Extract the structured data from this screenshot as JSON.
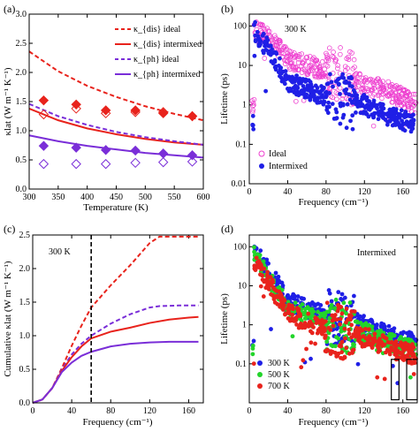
{
  "colors": {
    "red": "#e8231c",
    "purple": "#7a2ed8",
    "blue": "#1f1fe6",
    "pink": "#ee3fd0",
    "green": "#22d42a",
    "axis": "#000000"
  },
  "chart_data": [
    {
      "id": "a",
      "type": "line",
      "panel_label": "(a)",
      "xlabel": "Temperature (K)",
      "ylabel": "κlat (W m⁻¹ K⁻¹)",
      "xlim": [
        300,
        600
      ],
      "ylim": [
        0,
        3.0
      ],
      "xticks": [
        "300",
        "350",
        "400",
        "450",
        "500",
        "550",
        "600"
      ],
      "yticks": [
        "0.0",
        "0.5",
        "1.0",
        "1.5",
        "2.0",
        "2.5",
        "3.0"
      ],
      "legend_position": "top-right",
      "series": [
        {
          "name": "κ_{dis} ideal",
          "style": "dashed",
          "color": "red",
          "x": [
            300,
            350,
            400,
            450,
            500,
            550,
            600
          ],
          "y": [
            2.36,
            2.02,
            1.77,
            1.58,
            1.42,
            1.29,
            1.18
          ]
        },
        {
          "name": "κ_{dis} intermixed",
          "style": "solid",
          "color": "red",
          "x": [
            300,
            350,
            400,
            450,
            500,
            550,
            600
          ],
          "y": [
            1.38,
            1.18,
            1.04,
            0.94,
            0.86,
            0.8,
            0.76
          ]
        },
        {
          "name": "κ_{ph} ideal",
          "style": "dashed",
          "color": "purple",
          "x": [
            300,
            350,
            400,
            450,
            500,
            550,
            600
          ],
          "y": [
            1.46,
            1.25,
            1.1,
            0.98,
            0.89,
            0.82,
            0.76
          ]
        },
        {
          "name": "κ_{ph} intermixed",
          "style": "solid",
          "color": "purple",
          "x": [
            300,
            350,
            400,
            450,
            500,
            550,
            600
          ],
          "y": [
            0.92,
            0.82,
            0.74,
            0.68,
            0.62,
            0.58,
            0.54
          ]
        }
      ],
      "markers": [
        {
          "shape": "diamond",
          "fill": true,
          "color": "red",
          "x": [
            325,
            381,
            432,
            483,
            531,
            581
          ],
          "y": [
            1.52,
            1.45,
            1.35,
            1.35,
            1.3,
            1.25
          ]
        },
        {
          "shape": "diamond",
          "fill": false,
          "color": "red",
          "x": [
            325,
            381,
            432,
            483,
            531,
            581
          ],
          "y": [
            1.28,
            1.38,
            1.3,
            1.32,
            1.32,
            1.25
          ]
        },
        {
          "shape": "diamond",
          "fill": true,
          "color": "purple",
          "x": [
            325,
            381,
            432,
            483,
            531,
            581
          ],
          "y": [
            0.74,
            0.71,
            0.67,
            0.66,
            0.61,
            0.58
          ]
        },
        {
          "shape": "diamond",
          "fill": false,
          "color": "purple",
          "x": [
            325,
            381,
            432,
            483,
            531,
            581
          ],
          "y": [
            0.43,
            0.43,
            0.43,
            0.45,
            0.46,
            0.47
          ]
        }
      ]
    },
    {
      "id": "b",
      "type": "scatter",
      "panel_label": "(b)",
      "annotation": "300 K",
      "xlabel": "Frequency (cm⁻¹)",
      "ylabel": "Lifetime (ps)",
      "xlim": [
        0,
        175
      ],
      "ylim": [
        0.01,
        200
      ],
      "yscale": "log",
      "xticks": [
        "0",
        "40",
        "80",
        "120",
        "160"
      ],
      "yticks": [
        "0.01",
        "0.1",
        "1",
        "10",
        "100"
      ],
      "legend_position": "bottom-left",
      "series": [
        {
          "name": "Ideal",
          "marker": "open-circle",
          "color": "pink",
          "trend": [
            [
              5,
              80
            ],
            [
              20,
              50
            ],
            [
              40,
              15
            ],
            [
              60,
              10
            ],
            [
              80,
              8
            ],
            [
              100,
              6
            ],
            [
              120,
              3
            ],
            [
              140,
              2.5
            ],
            [
              160,
              1.5
            ],
            [
              175,
              1.0
            ]
          ],
          "count": 420
        },
        {
          "name": "Intermixed",
          "marker": "filled-circle",
          "color": "blue",
          "trend": [
            [
              5,
              80
            ],
            [
              20,
              25
            ],
            [
              40,
              4
            ],
            [
              60,
              2.5
            ],
            [
              80,
              1.5
            ],
            [
              100,
              1.2
            ],
            [
              120,
              1.0
            ],
            [
              140,
              0.6
            ],
            [
              160,
              0.4
            ],
            [
              175,
              0.3
            ]
          ],
          "count": 420
        }
      ]
    },
    {
      "id": "c",
      "type": "line",
      "panel_label": "(c)",
      "annotation": "300 K",
      "xlabel": "Frequency (cm⁻¹)",
      "ylabel": "Cumulative κlat (W m⁻¹ K⁻¹)",
      "xlim": [
        0,
        175
      ],
      "ylim": [
        0,
        2.5
      ],
      "xticks": [
        "0",
        "40",
        "80",
        "120",
        "160"
      ],
      "yticks": [
        "0.0",
        "0.5",
        "1.0",
        "1.5",
        "2.0",
        "2.5"
      ],
      "vline_x": 60,
      "series": [
        {
          "style": "dashed",
          "color": "red",
          "x": [
            0,
            10,
            20,
            30,
            40,
            50,
            60,
            80,
            100,
            120,
            130,
            150,
            165,
            170
          ],
          "y": [
            0,
            0.05,
            0.22,
            0.52,
            0.85,
            1.15,
            1.42,
            1.75,
            2.05,
            2.38,
            2.52,
            2.62,
            2.66,
            2.66
          ]
        },
        {
          "style": "dashed",
          "color": "purple",
          "x": [
            0,
            10,
            20,
            30,
            40,
            50,
            60,
            80,
            100,
            120,
            130,
            150,
            170
          ],
          "y": [
            0,
            0.05,
            0.22,
            0.5,
            0.72,
            0.88,
            1.0,
            1.18,
            1.32,
            1.42,
            1.44,
            1.45,
            1.45
          ]
        },
        {
          "style": "solid",
          "color": "red",
          "x": [
            0,
            10,
            20,
            30,
            40,
            50,
            60,
            80,
            100,
            120,
            140,
            160,
            170
          ],
          "y": [
            0,
            0.05,
            0.22,
            0.48,
            0.68,
            0.84,
            0.96,
            1.06,
            1.12,
            1.19,
            1.24,
            1.27,
            1.28
          ]
        },
        {
          "style": "solid",
          "color": "purple",
          "x": [
            0,
            10,
            20,
            30,
            40,
            50,
            60,
            80,
            100,
            120,
            140,
            170
          ],
          "y": [
            0,
            0.05,
            0.22,
            0.46,
            0.6,
            0.7,
            0.76,
            0.84,
            0.88,
            0.9,
            0.91,
            0.91
          ]
        }
      ]
    },
    {
      "id": "d",
      "type": "scatter",
      "panel_label": "(d)",
      "annotation": "Intermixed",
      "xlabel": "Frequency (cm⁻¹)",
      "ylabel": "Lifetime (ps)",
      "xlim": [
        0,
        175
      ],
      "ylim": [
        0.01,
        200
      ],
      "yscale": "log",
      "xticks": [
        "0",
        "40",
        "80",
        "120",
        "160"
      ],
      "yticks": [
        "0.1",
        "1",
        "10",
        "100"
      ],
      "legend_position": "bottom-left",
      "series": [
        {
          "name": "300 K",
          "marker": "filled-circle",
          "color": "blue",
          "trend": [
            [
              5,
              80
            ],
            [
              20,
              25
            ],
            [
              40,
              4
            ],
            [
              60,
              2.5
            ],
            [
              80,
              1.6
            ],
            [
              100,
              1.3
            ],
            [
              120,
              1.0
            ],
            [
              140,
              0.6
            ],
            [
              160,
              0.4
            ],
            [
              175,
              0.35
            ]
          ],
          "count": 380
        },
        {
          "name": "500 K",
          "marker": "filled-circle",
          "color": "green",
          "trend": [
            [
              5,
              60
            ],
            [
              20,
              16
            ],
            [
              40,
              2.7
            ],
            [
              60,
              1.7
            ],
            [
              80,
              1.1
            ],
            [
              100,
              0.85
            ],
            [
              120,
              0.65
            ],
            [
              140,
              0.4
            ],
            [
              160,
              0.26
            ],
            [
              175,
              0.23
            ]
          ],
          "count": 380
        },
        {
          "name": "700 K",
          "marker": "filled-circle",
          "color": "red",
          "trend": [
            [
              5,
              45
            ],
            [
              20,
              12
            ],
            [
              40,
              2.0
            ],
            [
              60,
              1.2
            ],
            [
              80,
              0.8
            ],
            [
              100,
              0.62
            ],
            [
              120,
              0.48
            ],
            [
              140,
              0.3
            ],
            [
              160,
              0.2
            ],
            [
              175,
              0.17
            ]
          ],
          "count": 380
        }
      ],
      "highlight_boxes": [
        [
          148,
          156
        ],
        [
          164,
          175
        ]
      ]
    }
  ]
}
